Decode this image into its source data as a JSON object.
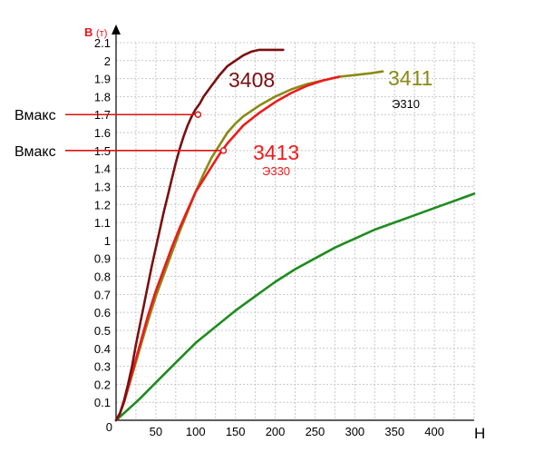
{
  "chart_data": {
    "type": "line",
    "ylabel": "B",
    "ylabel_unit": "(т)",
    "xlabel": "H",
    "xlim": [
      0,
      450
    ],
    "ylim": [
      0,
      2.1
    ],
    "x_ticks": [
      0,
      50,
      100,
      150,
      200,
      250,
      300,
      350,
      400
    ],
    "x_tick_labels": [
      "0",
      "50",
      "100",
      "150",
      "200",
      "250",
      "300",
      "350",
      "400"
    ],
    "y_ticks": [
      0.1,
      0.2,
      0.3,
      0.4,
      0.5,
      0.6,
      0.7,
      0.8,
      0.9,
      1,
      1.1,
      1.2,
      1.3,
      1.4,
      1.5,
      1.6,
      1.7,
      1.8,
      1.9,
      2,
      2.1
    ],
    "y_tick_labels": [
      "0.1",
      "0.2",
      "0.3",
      "0.4",
      "0.5",
      "0.6",
      "0.7",
      "0.8",
      "0.9",
      "1",
      "1.1",
      "1.2",
      "1.3",
      "1.4",
      "1.5",
      "1.6",
      "1.7",
      "1.8",
      "1.9",
      "2",
      "2.1"
    ],
    "grid": true,
    "series": [
      {
        "label_main": "3408",
        "color": "#7a1010",
        "x": [
          0,
          5,
          10,
          15,
          20,
          25,
          30,
          35,
          40,
          45,
          50,
          55,
          60,
          65,
          70,
          75,
          80,
          85,
          90,
          95,
          100,
          105,
          110,
          115,
          120,
          125,
          130,
          140,
          150,
          160,
          170,
          180,
          190,
          200,
          210
        ],
        "y": [
          0,
          0.04,
          0.11,
          0.2,
          0.3,
          0.42,
          0.53,
          0.64,
          0.75,
          0.86,
          0.96,
          1.06,
          1.16,
          1.25,
          1.34,
          1.43,
          1.51,
          1.58,
          1.64,
          1.69,
          1.73,
          1.76,
          1.8,
          1.83,
          1.86,
          1.89,
          1.92,
          1.97,
          2.0,
          2.03,
          2.05,
          2.06,
          2.06,
          2.06,
          2.06
        ]
      },
      {
        "label_main": "3411",
        "label_sub": "Э310",
        "color": "#8a8a14",
        "x": [
          0,
          5,
          10,
          20,
          30,
          40,
          50,
          60,
          70,
          80,
          90,
          100,
          110,
          120,
          130,
          140,
          150,
          160,
          180,
          200,
          220,
          240,
          260,
          280,
          300,
          320,
          335
        ],
        "y": [
          0,
          0.04,
          0.1,
          0.25,
          0.4,
          0.55,
          0.69,
          0.81,
          0.93,
          1.05,
          1.16,
          1.27,
          1.37,
          1.46,
          1.53,
          1.6,
          1.65,
          1.69,
          1.75,
          1.8,
          1.84,
          1.87,
          1.89,
          1.91,
          1.92,
          1.93,
          1.94
        ]
      },
      {
        "label_main": "3413",
        "label_sub": "Э330",
        "color": "#ee1a1a",
        "x": [
          0,
          5,
          10,
          20,
          30,
          40,
          50,
          60,
          70,
          80,
          90,
          100,
          110,
          120,
          130,
          140,
          150,
          160,
          180,
          200,
          220,
          240,
          260,
          280
        ],
        "y": [
          0,
          0.04,
          0.1,
          0.26,
          0.42,
          0.58,
          0.72,
          0.84,
          0.96,
          1.07,
          1.17,
          1.27,
          1.34,
          1.41,
          1.48,
          1.54,
          1.59,
          1.64,
          1.71,
          1.77,
          1.82,
          1.86,
          1.89,
          1.91
        ]
      },
      {
        "color": "#1e8c1e",
        "x": [
          0,
          10,
          20,
          30,
          50,
          75,
          100,
          125,
          150,
          175,
          200,
          225,
          250,
          275,
          300,
          325,
          350,
          375,
          400,
          425,
          450
        ],
        "y": [
          0,
          0.04,
          0.08,
          0.12,
          0.21,
          0.32,
          0.43,
          0.52,
          0.61,
          0.69,
          0.77,
          0.84,
          0.9,
          0.96,
          1.01,
          1.06,
          1.1,
          1.14,
          1.18,
          1.22,
          1.26
        ]
      }
    ],
    "annotations": [
      {
        "label": "Вмакс",
        "y": 1.7,
        "x": 103,
        "color": "#dd1111"
      },
      {
        "label": "Вмакс",
        "y": 1.5,
        "x": 135,
        "color": "#dd1111"
      }
    ]
  }
}
